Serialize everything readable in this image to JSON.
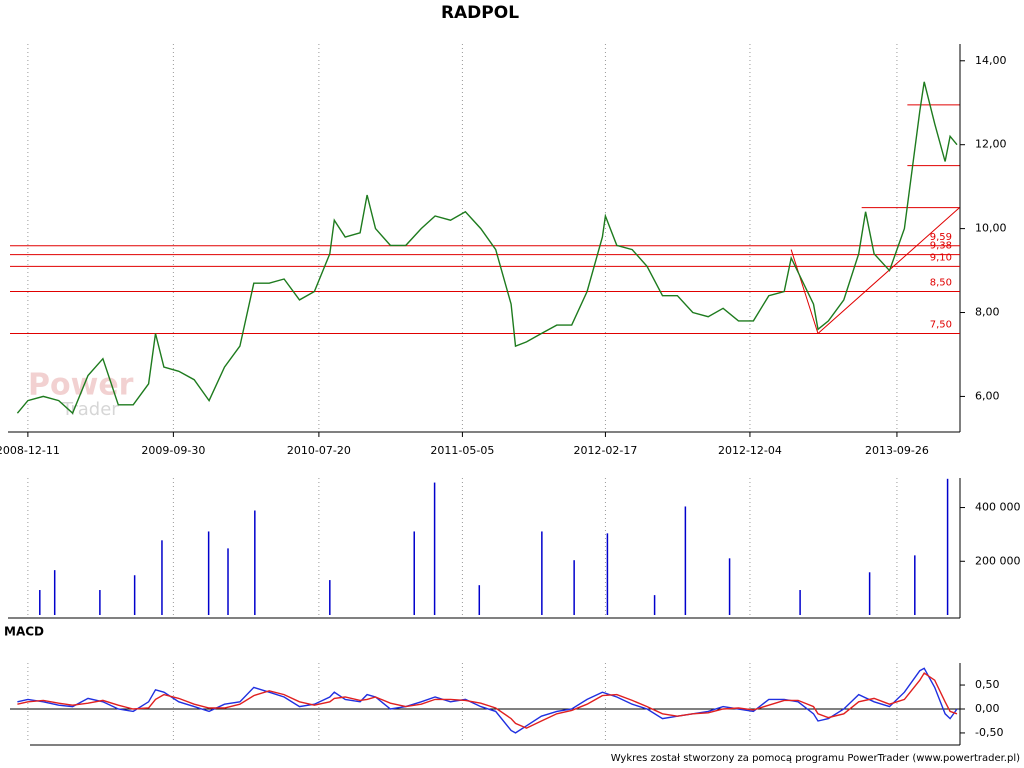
{
  "chart_data": [
    {
      "type": "line",
      "title": "RADPOL",
      "color": "#1e7b1e",
      "x": [
        "2008-11-20",
        "2008-12-11",
        "2009-01-11",
        "2009-02-11",
        "2009-03-11",
        "2009-04-11",
        "2009-05-11",
        "2009-06-11",
        "2009-07-11",
        "2009-08-11",
        "2009-08-25",
        "2009-09-11",
        "2009-10-11",
        "2009-11-11",
        "2009-12-11",
        "2010-01-11",
        "2010-02-11",
        "2010-03-11",
        "2010-04-11",
        "2010-05-11",
        "2010-06-11",
        "2010-07-11",
        "2010-08-11",
        "2010-08-20",
        "2010-09-11",
        "2010-10-11",
        "2010-10-25",
        "2010-11-11",
        "2010-12-11",
        "2011-01-11",
        "2011-02-11",
        "2011-03-11",
        "2011-04-11",
        "2011-05-11",
        "2011-06-11",
        "2011-07-11",
        "2011-08-11",
        "2011-08-20",
        "2011-09-11",
        "2011-10-11",
        "2011-11-11",
        "2011-12-11",
        "2012-01-11",
        "2012-02-11",
        "2012-02-17",
        "2012-03-11",
        "2012-04-11",
        "2012-05-11",
        "2012-06-11",
        "2012-07-11",
        "2012-08-11",
        "2012-09-11",
        "2012-10-11",
        "2012-11-11",
        "2012-12-11",
        "2013-01-11",
        "2013-02-11",
        "2013-02-25",
        "2013-04-11",
        "2013-04-20",
        "2013-05-11",
        "2013-06-11",
        "2013-07-11",
        "2013-07-25",
        "2013-08-11",
        "2013-09-11",
        "2013-10-11",
        "2013-11-11",
        "2013-11-20",
        "2013-12-11",
        "2014-01-01",
        "2014-01-11",
        "2014-01-25"
      ],
      "values": [
        5.6,
        5.9,
        6.0,
        5.9,
        5.6,
        6.5,
        6.9,
        5.8,
        5.8,
        6.3,
        7.5,
        6.7,
        6.6,
        6.4,
        5.9,
        6.7,
        7.2,
        8.7,
        8.7,
        8.8,
        8.3,
        8.5,
        9.4,
        10.2,
        9.8,
        9.9,
        10.8,
        10.0,
        9.6,
        9.6,
        10.0,
        10.3,
        10.2,
        10.4,
        10.0,
        9.5,
        8.2,
        7.2,
        7.3,
        7.5,
        7.7,
        7.7,
        8.5,
        9.8,
        10.3,
        9.6,
        9.5,
        9.1,
        8.4,
        8.4,
        8.0,
        7.9,
        8.1,
        7.8,
        7.8,
        8.4,
        8.5,
        9.3,
        8.2,
        7.6,
        7.8,
        8.3,
        9.4,
        10.4,
        9.4,
        9.0,
        10.0,
        12.8,
        13.5,
        12.5,
        11.6,
        12.2,
        12.0
      ],
      "xlim": [
        "2008-11-05",
        "2014-01-31"
      ],
      "xticks": [
        "2008-12-11",
        "2009-09-30",
        "2010-07-20",
        "2011-05-05",
        "2012-02-17",
        "2012-12-04",
        "2013-09-26"
      ],
      "ylim": [
        5.2,
        14.4
      ],
      "yticks": [
        {
          "value": 6,
          "label": "6,00"
        },
        {
          "value": 8,
          "label": "8,00"
        },
        {
          "value": 10,
          "label": "10,00"
        },
        {
          "value": 12,
          "label": "12,00"
        },
        {
          "value": 14,
          "label": "14,00"
        }
      ],
      "level_color": "#e00000",
      "levels": [
        {
          "value": 9.59,
          "label": "9,59"
        },
        {
          "value": 9.38,
          "label": "9,38"
        },
        {
          "value": 9.1,
          "label": "9,10"
        },
        {
          "value": 8.5,
          "label": "8,50"
        },
        {
          "value": 7.5,
          "label": "7,50"
        }
      ],
      "segments": [
        {
          "x": [
            "2013-10-17",
            "2014-01-30"
          ],
          "y": [
            12.95,
            12.95
          ]
        },
        {
          "x": [
            "2013-10-17",
            "2014-01-30"
          ],
          "y": [
            11.5,
            11.5
          ]
        },
        {
          "x": [
            "2013-07-17",
            "2014-01-30"
          ],
          "y": [
            10.5,
            10.5
          ]
        },
        {
          "x": [
            "2013-04-20",
            "2014-01-30"
          ],
          "y": [
            7.5,
            10.5
          ]
        },
        {
          "x": [
            "2013-02-25",
            "2013-04-20"
          ],
          "y": [
            9.5,
            7.5
          ]
        }
      ],
      "watermark": [
        "Power",
        "Trader"
      ]
    },
    {
      "type": "bar",
      "color": "#0000cc",
      "x": [
        "2009-01-04",
        "2009-02-03",
        "2009-05-05",
        "2009-07-14",
        "2009-09-07",
        "2009-12-10",
        "2010-01-18",
        "2010-03-13",
        "2010-08-11",
        "2011-01-28",
        "2011-03-10",
        "2011-06-08",
        "2011-10-12",
        "2011-12-16",
        "2012-02-21",
        "2012-05-26",
        "2012-07-27",
        "2012-10-24",
        "2013-03-15",
        "2013-08-02",
        "2013-11-01",
        "2014-01-06"
      ],
      "values": [
        93000,
        167000,
        93000,
        148000,
        278000,
        311000,
        248000,
        389000,
        130000,
        311000,
        493000,
        111000,
        311000,
        204000,
        304000,
        74000,
        404000,
        211000,
        93000,
        159000,
        222000,
        507000
      ],
      "ylim": [
        0,
        510000
      ],
      "yticks": [
        {
          "value": 200000,
          "label": "200 000"
        },
        {
          "value": 400000,
          "label": "400 000"
        }
      ]
    },
    {
      "type": "line",
      "title": "MACD",
      "x": [
        "2008-11-20",
        "2008-12-11",
        "2009-01-11",
        "2009-02-11",
        "2009-03-11",
        "2009-04-11",
        "2009-05-11",
        "2009-06-11",
        "2009-07-11",
        "2009-08-11",
        "2009-08-25",
        "2009-09-11",
        "2009-10-11",
        "2009-11-11",
        "2009-12-11",
        "2010-01-11",
        "2010-02-11",
        "2010-03-11",
        "2010-04-11",
        "2010-05-11",
        "2010-06-11",
        "2010-07-11",
        "2010-08-11",
        "2010-08-20",
        "2010-09-11",
        "2010-10-11",
        "2010-10-25",
        "2010-11-11",
        "2010-12-11",
        "2011-01-11",
        "2011-02-11",
        "2011-03-11",
        "2011-04-11",
        "2011-05-11",
        "2011-06-11",
        "2011-07-11",
        "2011-08-11",
        "2011-08-20",
        "2011-09-11",
        "2011-10-11",
        "2011-11-11",
        "2011-12-11",
        "2012-01-11",
        "2012-02-11",
        "2012-03-11",
        "2012-04-11",
        "2012-05-11",
        "2012-06-11",
        "2012-07-11",
        "2012-08-11",
        "2012-09-11",
        "2012-10-11",
        "2012-11-11",
        "2012-12-11",
        "2013-01-11",
        "2013-02-11",
        "2013-03-11",
        "2013-04-11",
        "2013-04-20",
        "2013-05-11",
        "2013-06-11",
        "2013-07-11",
        "2013-08-11",
        "2013-09-11",
        "2013-10-11",
        "2013-11-11",
        "2013-11-20",
        "2013-12-11",
        "2014-01-01",
        "2014-01-11",
        "2014-01-25"
      ],
      "series": [
        {
          "color": "#2030e0",
          "values": [
            0.15,
            0.2,
            0.15,
            0.08,
            0.05,
            0.22,
            0.15,
            0.0,
            -0.05,
            0.15,
            0.4,
            0.35,
            0.15,
            0.05,
            -0.05,
            0.1,
            0.15,
            0.45,
            0.35,
            0.25,
            0.05,
            0.1,
            0.25,
            0.35,
            0.2,
            0.15,
            0.3,
            0.25,
            0.0,
            0.05,
            0.15,
            0.25,
            0.15,
            0.2,
            0.05,
            -0.05,
            -0.45,
            -0.5,
            -0.35,
            -0.15,
            -0.05,
            0.0,
            0.2,
            0.35,
            0.25,
            0.1,
            0.0,
            -0.2,
            -0.15,
            -0.1,
            -0.05,
            0.05,
            0.0,
            -0.05,
            0.2,
            0.2,
            0.15,
            -0.1,
            -0.25,
            -0.2,
            0.0,
            0.3,
            0.15,
            0.05,
            0.35,
            0.8,
            0.85,
            0.45,
            -0.1,
            -0.2,
            0.0
          ]
        },
        {
          "color": "#e02020",
          "values": [
            0.1,
            0.15,
            0.18,
            0.12,
            0.08,
            0.12,
            0.18,
            0.08,
            0.0,
            0.02,
            0.2,
            0.3,
            0.22,
            0.1,
            0.02,
            0.02,
            0.1,
            0.28,
            0.38,
            0.3,
            0.15,
            0.08,
            0.15,
            0.22,
            0.25,
            0.18,
            0.2,
            0.25,
            0.12,
            0.05,
            0.1,
            0.2,
            0.2,
            0.18,
            0.12,
            0.02,
            -0.2,
            -0.3,
            -0.4,
            -0.25,
            -0.1,
            -0.03,
            0.1,
            0.28,
            0.3,
            0.18,
            0.05,
            -0.1,
            -0.15,
            -0.1,
            -0.08,
            0.0,
            0.02,
            -0.02,
            0.08,
            0.18,
            0.18,
            0.05,
            -0.1,
            -0.18,
            -0.1,
            0.15,
            0.22,
            0.1,
            0.2,
            0.6,
            0.75,
            0.6,
            0.15,
            -0.05,
            -0.1
          ]
        }
      ],
      "ylim": [
        -0.71,
        0.96
      ],
      "yticks": [
        {
          "value": 0.5,
          "label": "0,50"
        },
        {
          "value": 0,
          "label": "0,00"
        },
        {
          "value": -0.5,
          "label": "-0,50"
        }
      ]
    }
  ],
  "footer": "Wykres został stworzony za pomocą programu PowerTrader (www.powertrader.pl)"
}
